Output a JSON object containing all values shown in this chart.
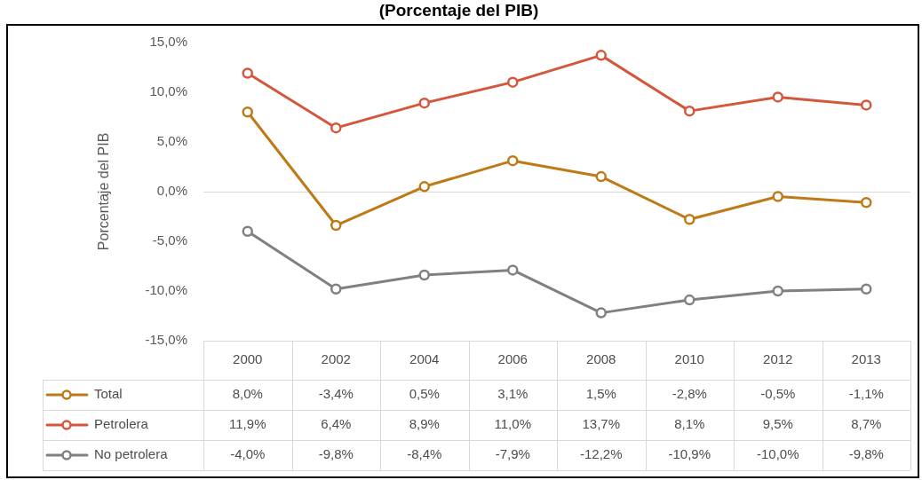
{
  "chart_data": {
    "type": "line",
    "title": "(Porcentaje del PIB)",
    "ylabel": "Porcentaje del PIB",
    "categories": [
      "2000",
      "2002",
      "2004",
      "2006",
      "2008",
      "2010",
      "2012",
      "2013"
    ],
    "series": [
      {
        "name": "Total",
        "color": "#bf7a18",
        "values": [
          8.0,
          -3.4,
          0.5,
          3.1,
          1.5,
          -2.8,
          -0.5,
          -1.1
        ],
        "value_labels": [
          "8,0%",
          "-3,4%",
          "0,5%",
          "3,1%",
          "1,5%",
          "-2,8%",
          "-0,5%",
          "-1,1%"
        ]
      },
      {
        "name": "Petrolera",
        "color": "#d5573b",
        "values": [
          11.9,
          6.4,
          8.9,
          11.0,
          13.7,
          8.1,
          9.5,
          8.7
        ],
        "value_labels": [
          "11,9%",
          "6,4%",
          "8,9%",
          "11,0%",
          "13,7%",
          "8,1%",
          "9,5%",
          "8,7%"
        ]
      },
      {
        "name": "No petrolera",
        "color": "#808080",
        "values": [
          -4.0,
          -9.8,
          -8.4,
          -7.9,
          -12.2,
          -10.9,
          -10.0,
          -9.8
        ],
        "value_labels": [
          "-4,0%",
          "-9,8%",
          "-8,4%",
          "-7,9%",
          "-12,2%",
          "-10,9%",
          "-10,0%",
          "-9,8%"
        ]
      }
    ],
    "ylim": [
      -15,
      15
    ],
    "yticks": [
      {
        "value": -15,
        "label": "-15,0%"
      },
      {
        "value": -10,
        "label": "-10,0%"
      },
      {
        "value": -5,
        "label": "-5,0%"
      },
      {
        "value": 0,
        "label": "0,0%"
      },
      {
        "value": 5,
        "label": "5,0%"
      },
      {
        "value": 10,
        "label": "10,0%"
      },
      {
        "value": 15,
        "label": "15,0%"
      }
    ],
    "marker": "circle",
    "line_style": "solid",
    "legend": "bottom left"
  }
}
